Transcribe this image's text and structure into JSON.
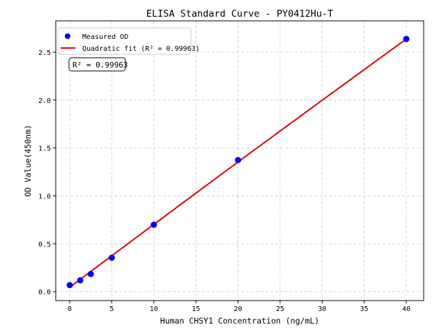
{
  "chart_data": {
    "type": "scatter",
    "title": "ELISA Standard Curve - PY0412Hu-T",
    "xlabel": "Human CHSY1 Concentration (ng/mL)",
    "ylabel": "OD Value(450nm)",
    "xlim": [
      -1.66,
      42.07
    ],
    "ylim": [
      -0.094,
      2.827
    ],
    "xticks": [
      0,
      5,
      10,
      15,
      20,
      25,
      30,
      35,
      40
    ],
    "yticks": [
      0.0,
      0.5,
      1.0,
      1.5,
      2.0,
      2.5
    ],
    "grid": true,
    "legend_position": "top-left",
    "series": [
      {
        "name": "Measured OD",
        "kind": "points",
        "color": "#0000ff",
        "x": [
          0,
          1.25,
          2.5,
          5,
          10,
          20,
          40
        ],
        "y": [
          0.068,
          0.118,
          0.184,
          0.354,
          0.698,
          1.374,
          2.638
        ]
      },
      {
        "name": "Quadratic fit (R² = 0.99963)",
        "kind": "line",
        "color": "#e00000",
        "coefficients": {
          "a": -3e-05,
          "b": 0.066,
          "c": 0.045
        }
      }
    ],
    "annotation": "R² = 0.99963"
  }
}
